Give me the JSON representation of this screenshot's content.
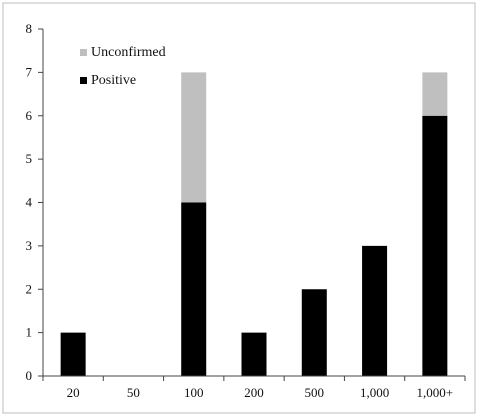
{
  "chart_data": {
    "type": "bar",
    "stacked": true,
    "categories": [
      "20",
      "50",
      "100",
      "200",
      "500",
      "1,000",
      "1,000+"
    ],
    "series": [
      {
        "name": "Positive",
        "values": [
          1,
          0,
          4,
          1,
          2,
          3,
          6
        ],
        "color": "#000000"
      },
      {
        "name": "Unconfirmed",
        "values": [
          0,
          0,
          3,
          0,
          0,
          0,
          1
        ],
        "color": "#bfbfbf"
      }
    ],
    "yticks": [
      "0",
      "1",
      "2",
      "3",
      "4",
      "5",
      "6",
      "7",
      "8"
    ],
    "ylim": [
      0,
      8
    ],
    "grid": false,
    "legend_position": "top-left",
    "legend_order": [
      "Unconfirmed",
      "Positive"
    ]
  }
}
